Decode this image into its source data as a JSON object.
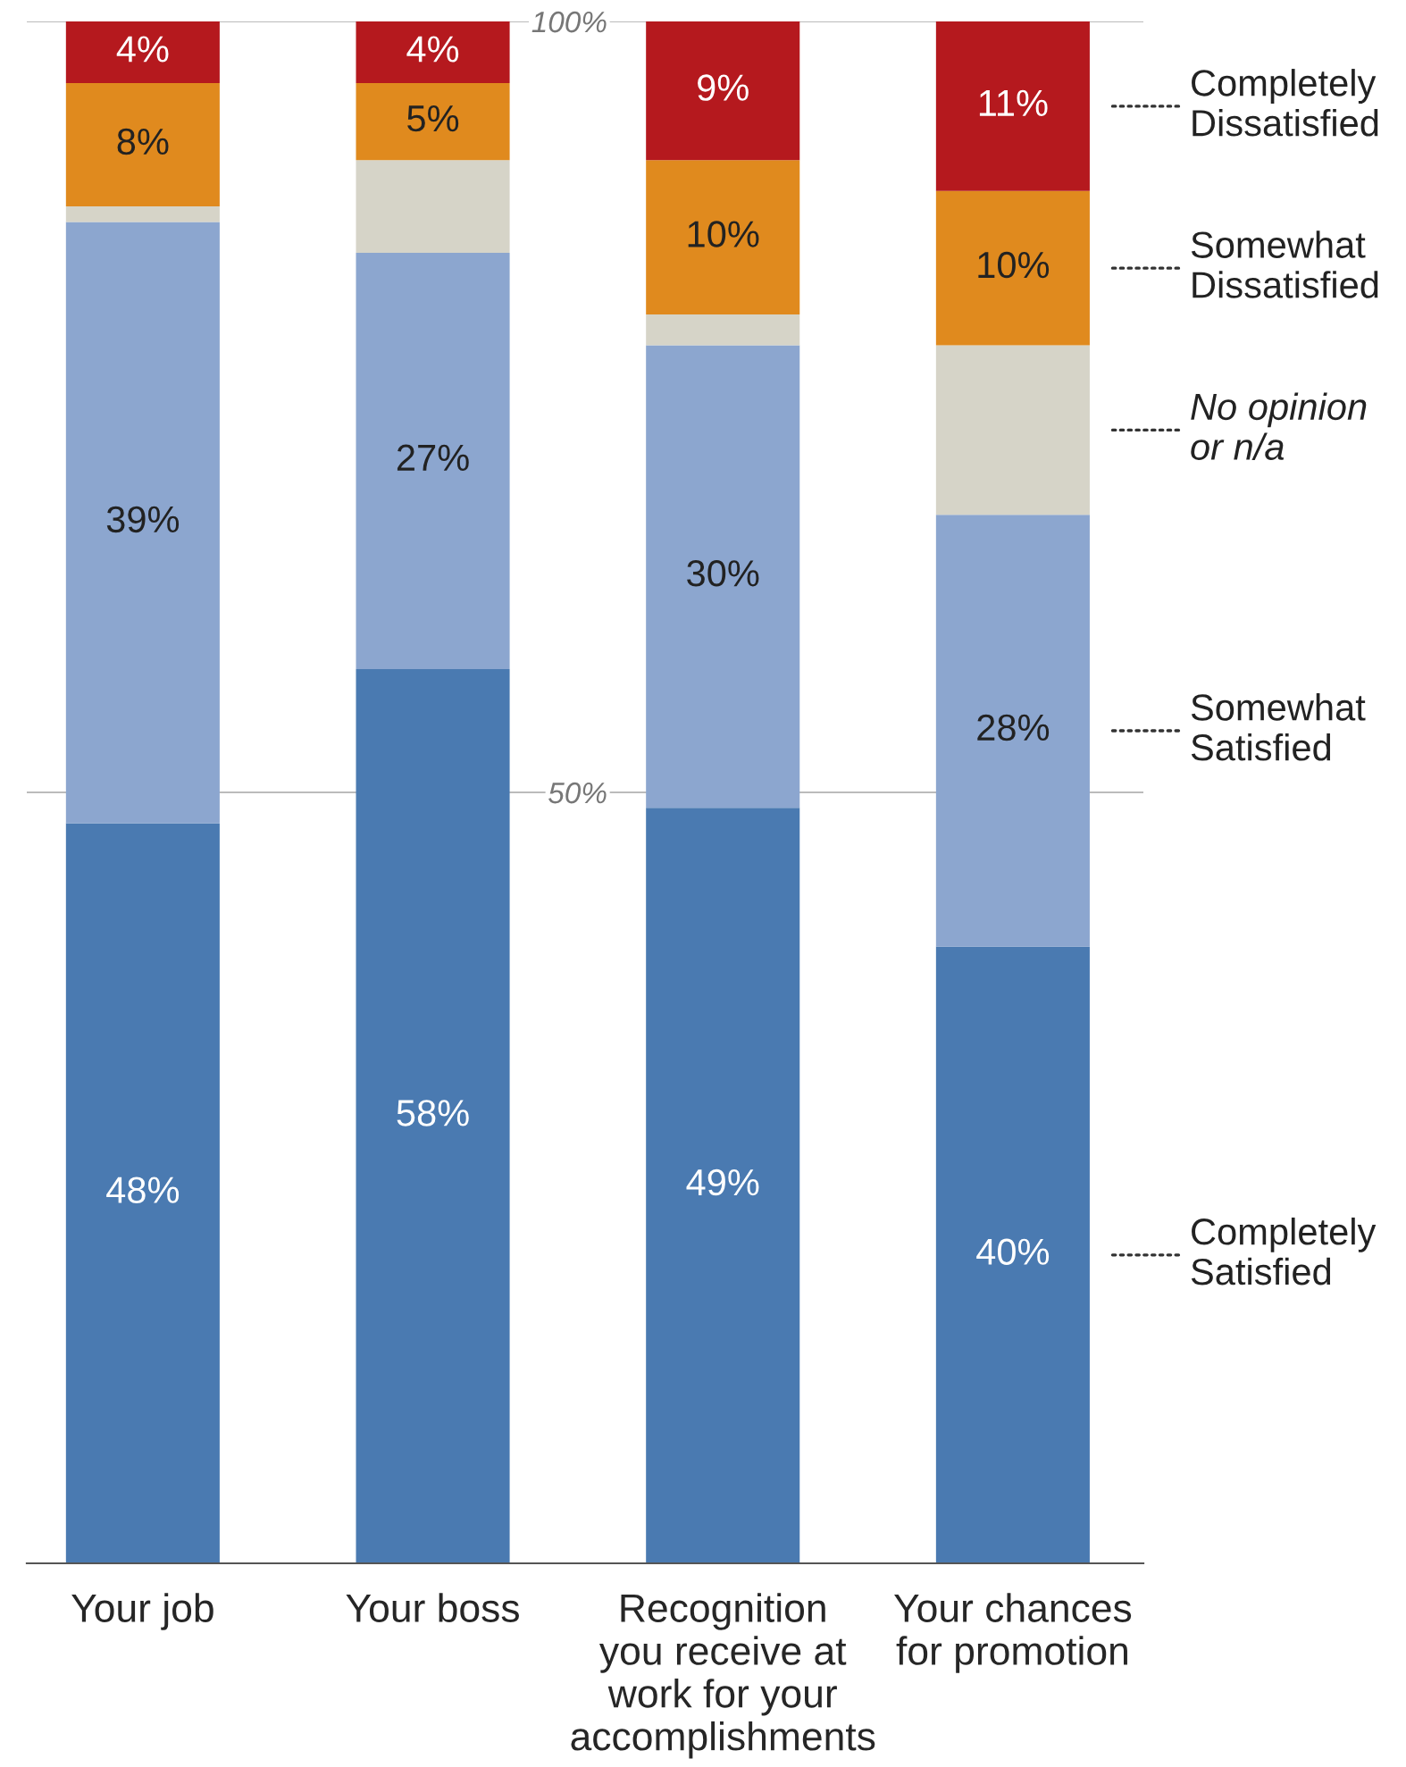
{
  "chart_data": {
    "type": "bar",
    "stacked": true,
    "categories": [
      "Your job",
      "Your boss",
      "Recognition\nyou receive at\nwork for your\naccomplishments",
      "Your chances\nfor promotion"
    ],
    "series": [
      {
        "name": "Completely\nSatisfied",
        "color": "#4a7ab1",
        "values": [
          48,
          58,
          49,
          40
        ],
        "value_labels": [
          "48%",
          "58%",
          "49%",
          "40%"
        ]
      },
      {
        "name": "Somewhat\nSatisfied",
        "color": "#8ca6cf",
        "values": [
          39,
          27,
          30,
          28
        ],
        "value_labels": [
          "39%",
          "27%",
          "30%",
          "28%"
        ]
      },
      {
        "name": "No opinion\nor n/a",
        "color": "#d6d4c8",
        "values": [
          1,
          6,
          2,
          11
        ],
        "value_labels": [
          null,
          null,
          null,
          null
        ]
      },
      {
        "name": "Somewhat\nDissatisfied",
        "color": "#e08a1e",
        "values": [
          8,
          5,
          10,
          10
        ],
        "value_labels": [
          "8%",
          "5%",
          "10%",
          "10%"
        ]
      },
      {
        "name": "Completely\nDissatisfied",
        "color": "#b5191e",
        "values": [
          4,
          4,
          9,
          11
        ],
        "value_labels": [
          "4%",
          "4%",
          "9%",
          "11%"
        ]
      }
    ],
    "ylim": [
      0,
      100
    ],
    "yticks": [
      {
        "value": 50,
        "label": "50%"
      },
      {
        "value": 100,
        "label": "100%"
      }
    ],
    "grid": "y",
    "legend": "right"
  }
}
